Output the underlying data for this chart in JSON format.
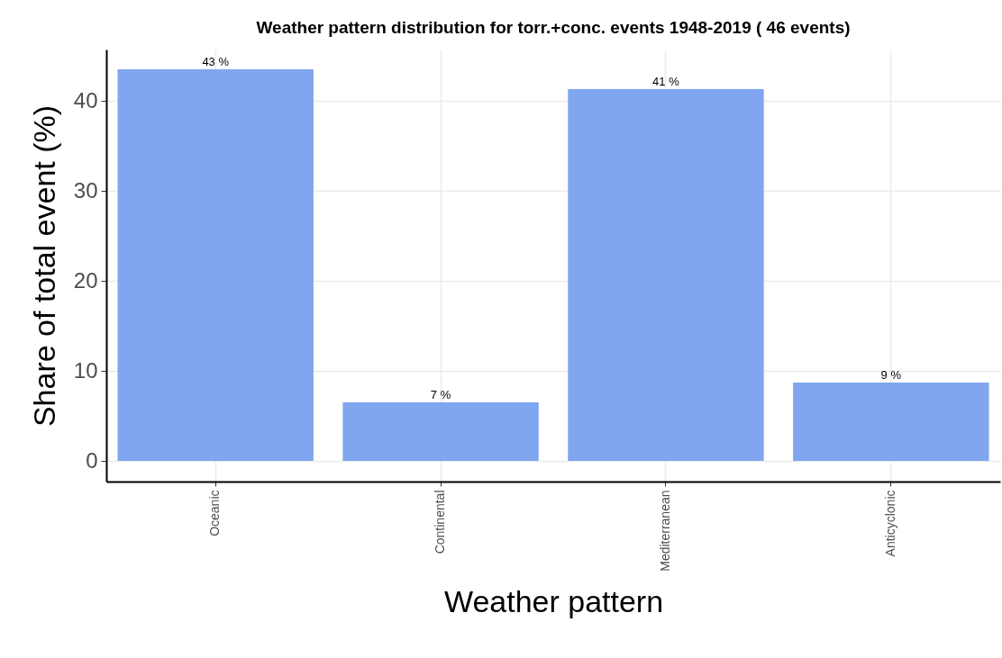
{
  "chart_data": {
    "type": "bar",
    "title": "Weather pattern distribution for torr.+conc. events 1948-2019 ( 46 events)",
    "xlabel": "Weather pattern",
    "ylabel": "Share of total event (%)",
    "categories": [
      "Oceanic",
      "Continental",
      "Mediterranean",
      "Anticyclonic"
    ],
    "values": [
      43.5,
      6.5,
      41.3,
      8.7
    ],
    "value_labels": [
      "43 %",
      "7 %",
      "41 %",
      "9 %"
    ],
    "color": "#7fa6ee",
    "ylim": [
      -2.3,
      45.7
    ],
    "yticks": [
      0,
      10,
      20,
      30,
      40
    ],
    "grid": true
  }
}
